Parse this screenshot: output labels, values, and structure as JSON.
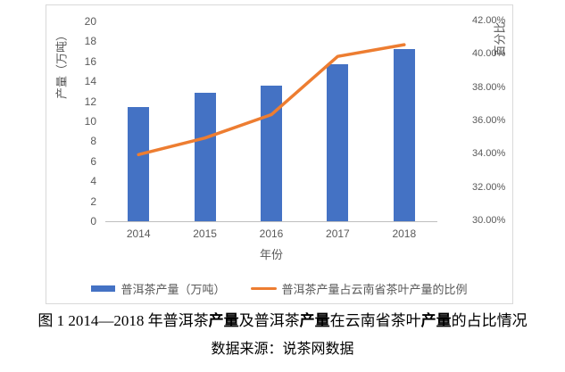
{
  "colors": {
    "bar": "#4472C4",
    "line": "#ED7D31",
    "axis_text": "#595959",
    "axis_line": "#BFBFBF",
    "frame_border": "#D9D9D9",
    "caption_text": "#000000"
  },
  "chart_data": {
    "type": "bar",
    "combo": "bar+line",
    "categories": [
      "2014",
      "2015",
      "2016",
      "2017",
      "2018"
    ],
    "series": [
      {
        "name": "普洱茶产量（万吨）",
        "type": "bar",
        "axis": "left",
        "values": [
          11.4,
          12.9,
          13.6,
          15.7,
          17.2
        ],
        "color": "#4472C4"
      },
      {
        "name": "普洱茶产量占云南省茶叶产量的比例",
        "type": "line",
        "axis": "right",
        "values": [
          34.0,
          35.0,
          36.4,
          39.9,
          40.6
        ],
        "unit": "%",
        "color": "#ED7D31"
      }
    ],
    "left_axis": {
      "title": "产量（万吨）",
      "min": 0,
      "max": 20,
      "step": 2
    },
    "right_axis": {
      "title": "百分比",
      "min": 30,
      "max": 42,
      "step": 2,
      "format": "percent-2dp"
    },
    "x_axis": {
      "title": "年份"
    },
    "legend_position": "bottom",
    "gridlines": false
  },
  "caption": {
    "line1_parts": [
      {
        "text": "图 1 2014—2018 年普洱茶",
        "bold": false
      },
      {
        "text": "产量",
        "bold": true
      },
      {
        "text": "及普洱茶",
        "bold": false
      },
      {
        "text": "产量",
        "bold": true
      },
      {
        "text": "在云南省茶叶",
        "bold": false
      },
      {
        "text": "产量",
        "bold": true
      },
      {
        "text": "的占比情况",
        "bold": false
      }
    ],
    "line2": "数据来源：说茶网数据"
  }
}
